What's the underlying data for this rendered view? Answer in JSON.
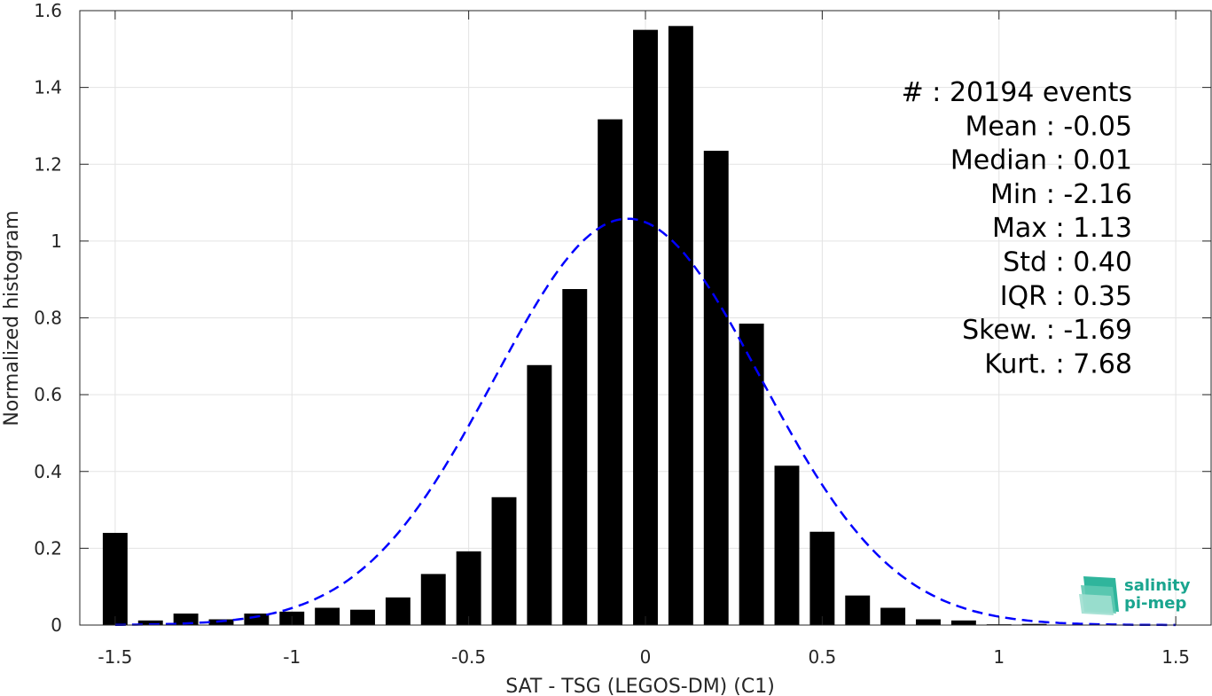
{
  "chart_data": {
    "type": "bar",
    "xlabel": "SAT - TSG (LEGOS-DM) (C1)",
    "ylabel": "Normalized histogram",
    "xlim": [
      -1.6,
      1.6
    ],
    "ylim": [
      0,
      1.6
    ],
    "xticks": [
      -1.5,
      -1,
      -0.5,
      0,
      0.5,
      1,
      1.5
    ],
    "xtick_labels": [
      "-1.5",
      "-1",
      "-0.5",
      "0",
      "0.5",
      "1",
      "1.5"
    ],
    "yticks": [
      0,
      0.2,
      0.4,
      0.6,
      0.8,
      1,
      1.2,
      1.4,
      1.6
    ],
    "ytick_labels": [
      "0",
      "0.2",
      "0.4",
      "0.6",
      "0.8",
      "1",
      "1.2",
      "1.4",
      "1.6"
    ],
    "grid": true,
    "bar_color": "#000000",
    "bins": [
      {
        "x": -1.5,
        "value": 0.24
      },
      {
        "x": -1.4,
        "value": 0.012
      },
      {
        "x": -1.3,
        "value": 0.03
      },
      {
        "x": -1.2,
        "value": 0.015
      },
      {
        "x": -1.1,
        "value": 0.03
      },
      {
        "x": -1.0,
        "value": 0.035
      },
      {
        "x": -0.9,
        "value": 0.045
      },
      {
        "x": -0.8,
        "value": 0.04
      },
      {
        "x": -0.7,
        "value": 0.072
      },
      {
        "x": -0.6,
        "value": 0.133
      },
      {
        "x": -0.5,
        "value": 0.192
      },
      {
        "x": -0.4,
        "value": 0.333
      },
      {
        "x": -0.3,
        "value": 0.677
      },
      {
        "x": -0.2,
        "value": 0.875
      },
      {
        "x": -0.1,
        "value": 1.317
      },
      {
        "x": 0.0,
        "value": 1.55
      },
      {
        "x": 0.1,
        "value": 1.56
      },
      {
        "x": 0.2,
        "value": 1.235
      },
      {
        "x": 0.3,
        "value": 0.785
      },
      {
        "x": 0.4,
        "value": 0.415
      },
      {
        "x": 0.5,
        "value": 0.243
      },
      {
        "x": 0.6,
        "value": 0.077
      },
      {
        "x": 0.7,
        "value": 0.045
      },
      {
        "x": 0.8,
        "value": 0.015
      },
      {
        "x": 0.9,
        "value": 0.012
      },
      {
        "x": 1.0,
        "value": 0.002
      },
      {
        "x": 1.1,
        "value": 0.003
      }
    ],
    "bin_width": 0.1,
    "fit_curve": {
      "type": "normal",
      "mean": -0.05,
      "std": 0.377,
      "x_range": [
        -1.5,
        1.5
      ],
      "color": "#0000ff",
      "style": "dashed"
    },
    "stats": [
      "#  : 20194 events",
      "Mean : -0.05",
      "Median : 0.01",
      "Min : -2.16",
      "Max : 1.13",
      "Std : 0.40",
      "IQR : 0.35",
      "Skew. : -1.69",
      "Kurt. : 7.68"
    ]
  },
  "logo": {
    "line1": "salinity",
    "line2": "pi-mep"
  }
}
